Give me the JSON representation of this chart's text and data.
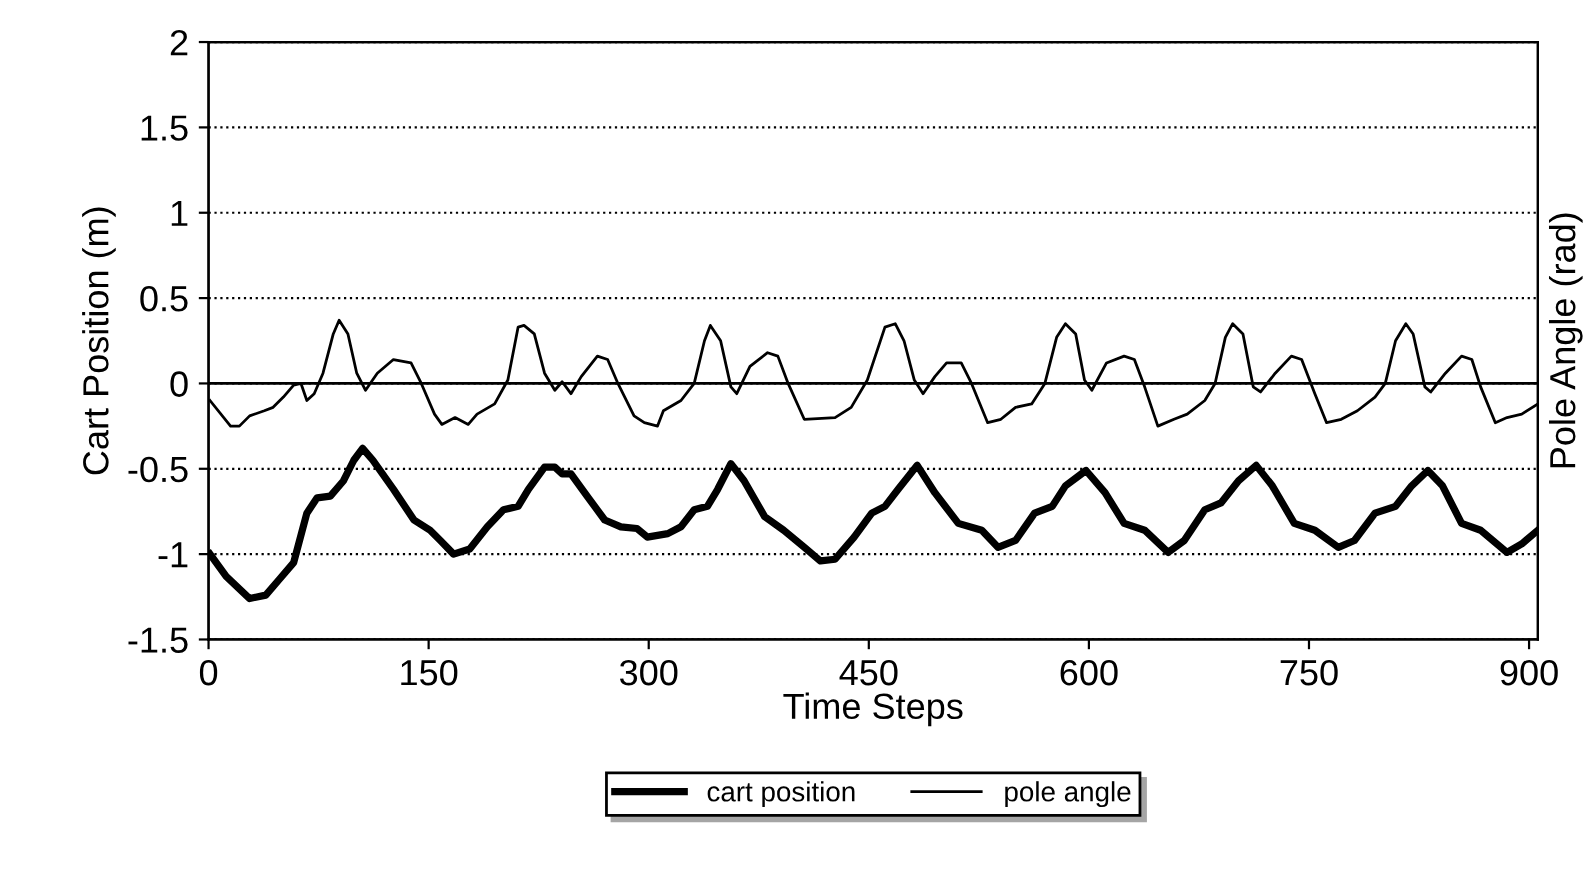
{
  "chart_data": {
    "type": "line",
    "xlabel": "Time Steps",
    "ylabel": "Cart Position (m)",
    "y2label": "Pole Angle (rad)",
    "xlim": [
      0,
      906
    ],
    "xticks": [
      0,
      150,
      300,
      450,
      600,
      750,
      900
    ],
    "ylim": [
      -1.5,
      2
    ],
    "yticks": [
      -1.5,
      -1,
      -0.5,
      0,
      0.5,
      1,
      1.5,
      2
    ],
    "grid": "y",
    "legend": "bottom",
    "line_style": "solid",
    "marker": "none",
    "ref_lines": [
      {
        "axis": "y",
        "value": 0,
        "color": "#000000",
        "line_style": "solid"
      }
    ],
    "series": [
      {
        "name": "cart position",
        "color": "#000000",
        "x": [
          1,
          12,
          28,
          39,
          48,
          58,
          67,
          74,
          83,
          92,
          99,
          105,
          112,
          126,
          140,
          151,
          158,
          167,
          178,
          190,
          201,
          211,
          218,
          229,
          236,
          241,
          247,
          258,
          270,
          281,
          292,
          299,
          313,
          322,
          331,
          340,
          347,
          356,
          365,
          379,
          392,
          406,
          417,
          427,
          440,
          452,
          461,
          470,
          483,
          495,
          511,
          527,
          538,
          550,
          563,
          575,
          584,
          598,
          611,
          624,
          638,
          654,
          665,
          679,
          690,
          702,
          714,
          725,
          740,
          754,
          770,
          781,
          795,
          809,
          820,
          831,
          841,
          854,
          867,
          885,
          895,
          906
        ],
        "values": [
          -1.0,
          -1.13,
          -1.26,
          -1.24,
          -1.15,
          -1.05,
          -0.76,
          -0.67,
          -0.66,
          -0.57,
          -0.45,
          -0.38,
          -0.45,
          -0.62,
          -0.8,
          -0.86,
          -0.92,
          -1.0,
          -0.97,
          -0.84,
          -0.74,
          -0.72,
          -0.62,
          -0.49,
          -0.49,
          -0.53,
          -0.53,
          -0.66,
          -0.8,
          -0.84,
          -0.85,
          -0.9,
          -0.88,
          -0.84,
          -0.74,
          -0.72,
          -0.62,
          -0.47,
          -0.57,
          -0.78,
          -0.86,
          -0.96,
          -1.04,
          -1.03,
          -0.9,
          -0.76,
          -0.72,
          -0.62,
          -0.48,
          -0.64,
          -0.82,
          -0.86,
          -0.96,
          -0.92,
          -0.76,
          -0.72,
          -0.6,
          -0.51,
          -0.64,
          -0.82,
          -0.86,
          -0.99,
          -0.92,
          -0.74,
          -0.7,
          -0.57,
          -0.48,
          -0.6,
          -0.82,
          -0.86,
          -0.96,
          -0.92,
          -0.76,
          -0.72,
          -0.6,
          -0.51,
          -0.6,
          -0.82,
          -0.86,
          -0.99,
          -0.94,
          -0.86
        ]
      },
      {
        "name": "pole angle",
        "color": "#000000",
        "x": [
          1,
          15,
          21,
          28,
          38,
          44,
          51,
          58,
          63,
          67,
          72,
          78,
          85,
          89,
          95,
          101,
          107,
          115,
          126,
          138,
          145,
          154,
          159,
          168,
          177,
          183,
          195,
          204,
          211,
          215,
          222,
          229,
          236,
          241,
          247,
          254,
          265,
          272,
          279,
          290,
          297,
          306,
          310,
          322,
          331,
          338,
          342,
          349,
          356,
          360,
          369,
          381,
          388,
          395,
          406,
          427,
          438,
          449,
          461,
          468,
          474,
          481,
          487,
          495,
          503,
          513,
          520,
          531,
          540,
          550,
          561,
          570,
          578,
          584,
          591,
          597,
          602,
          612,
          624,
          631,
          638,
          647,
          658,
          667,
          679,
          686,
          693,
          698,
          705,
          712,
          717,
          727,
          738,
          745,
          754,
          762,
          772,
          783,
          795,
          802,
          809,
          816,
          821,
          829,
          833,
          843,
          854,
          861,
          867,
          877,
          885,
          895,
          906
        ],
        "values": [
          -0.1,
          -0.25,
          -0.25,
          -0.19,
          -0.16,
          -0.14,
          -0.08,
          -0.01,
          0.0,
          -0.1,
          -0.06,
          0.06,
          0.29,
          0.37,
          0.29,
          0.06,
          -0.04,
          0.06,
          0.14,
          0.12,
          0.0,
          -0.18,
          -0.24,
          -0.2,
          -0.24,
          -0.18,
          -0.12,
          0.02,
          0.33,
          0.34,
          0.29,
          0.06,
          -0.04,
          0.01,
          -0.06,
          0.04,
          0.16,
          0.14,
          0.0,
          -0.19,
          -0.23,
          -0.25,
          -0.16,
          -0.1,
          0.0,
          0.25,
          0.34,
          0.25,
          -0.02,
          -0.06,
          0.1,
          0.18,
          0.16,
          0.0,
          -0.21,
          -0.2,
          -0.14,
          0.02,
          0.33,
          0.35,
          0.25,
          0.02,
          -0.06,
          0.04,
          0.12,
          0.12,
          0.0,
          -0.23,
          -0.21,
          -0.14,
          -0.12,
          0.0,
          0.27,
          0.35,
          0.29,
          0.02,
          -0.04,
          0.12,
          0.16,
          0.14,
          -0.02,
          -0.25,
          -0.21,
          -0.18,
          -0.1,
          0.0,
          0.27,
          0.35,
          0.29,
          -0.02,
          -0.05,
          0.06,
          0.16,
          0.14,
          -0.06,
          -0.23,
          -0.21,
          -0.16,
          -0.08,
          0.0,
          0.25,
          0.35,
          0.29,
          -0.02,
          -0.05,
          0.06,
          0.16,
          0.14,
          -0.02,
          -0.23,
          -0.2,
          -0.18,
          -0.12
        ]
      }
    ]
  }
}
